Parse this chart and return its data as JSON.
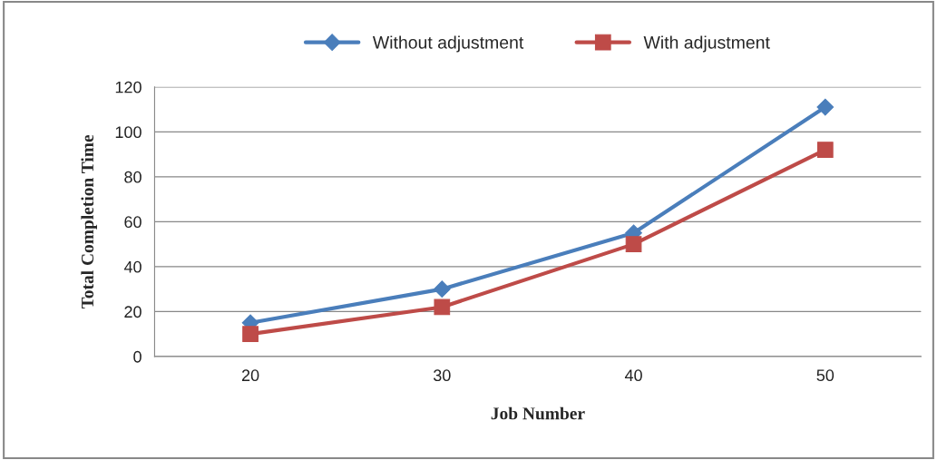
{
  "chart_data": {
    "type": "line",
    "xlabel": "Job Number",
    "ylabel": "Total Completion Time",
    "categories": [
      "20",
      "30",
      "40",
      "50"
    ],
    "series": [
      {
        "name": "Without adjustment",
        "color": "#4a7ebb",
        "marker": "diamond",
        "values": [
          15,
          30,
          55,
          111
        ]
      },
      {
        "name": "With adjustment",
        "color": "#be4b48",
        "marker": "square",
        "values": [
          10,
          22,
          50,
          92
        ]
      }
    ],
    "ylim": [
      0,
      120
    ],
    "yticks": [
      0,
      20,
      40,
      60,
      80,
      100,
      120
    ],
    "grid": "y",
    "legend": "top",
    "line_style": "solid"
  }
}
